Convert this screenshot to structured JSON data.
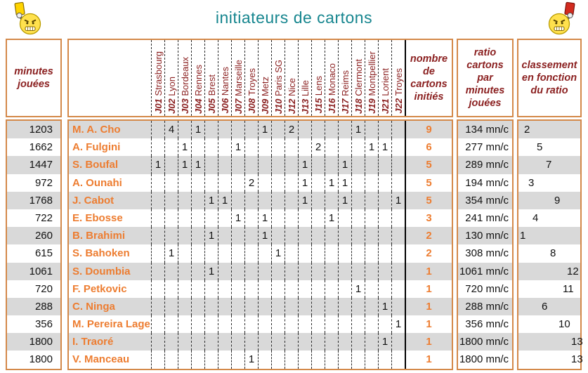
{
  "title": "initiateurs de cartons",
  "icons": {
    "left": "smiley-referee-yellow-card-icon",
    "right": "smiley-referee-red-card-icon"
  },
  "colors": {
    "border_orange": "#d4894a",
    "header_maroon": "#8a1f1f",
    "player_orange": "#ed7d31",
    "title_teal": "#17868f",
    "row_stripe_gray": "#d9d9d9",
    "yellow_card": "#ffd400",
    "red_card": "#d22b1f"
  },
  "headers": {
    "minutes": "minutes jouées",
    "cards_total": "nombre de cartons initiés",
    "ratio": "ratio cartons par minutes jouées",
    "ranking": "classement en fonction du ratio"
  },
  "columns": [
    {
      "id": "J01",
      "team": "Strasbourg"
    },
    {
      "id": "J02",
      "team": "Lyon"
    },
    {
      "id": "J03",
      "team": "Bordeaux"
    },
    {
      "id": "J04",
      "team": "Rennes"
    },
    {
      "id": "J05",
      "team": "Brest"
    },
    {
      "id": "J06",
      "team": "Nantes"
    },
    {
      "id": "J07",
      "team": "Marseille"
    },
    {
      "id": "J08",
      "team": "Troyes"
    },
    {
      "id": "J09",
      "team": "Metz"
    },
    {
      "id": "J10",
      "team": "Paris SG"
    },
    {
      "id": "J12",
      "team": "Nice"
    },
    {
      "id": "J13",
      "team": "Lille"
    },
    {
      "id": "J15",
      "team": "Lens"
    },
    {
      "id": "J16",
      "team": "Monaco"
    },
    {
      "id": "J17",
      "team": "Reims"
    },
    {
      "id": "J18",
      "team": "Clermont"
    },
    {
      "id": "J19",
      "team": "Montpellier"
    },
    {
      "id": "J21",
      "team": "Lorient"
    },
    {
      "id": "J22",
      "team": "Troyes"
    }
  ],
  "rows": [
    {
      "name": "M. A. Cho",
      "minutes": "1203",
      "cards": {
        "J02": "4",
        "J04": "1",
        "J09": "1",
        "J12": "2",
        "J18": "1"
      },
      "total": "9",
      "ratio": "134 mn/c",
      "rank": 2
    },
    {
      "name": "A. Fulgini",
      "minutes": "1662",
      "cards": {
        "J03": "1",
        "J07": "1",
        "J15": "2",
        "J19": "1",
        "J21": "1"
      },
      "total": "6",
      "ratio": "277 mn/c",
      "rank": 5
    },
    {
      "name": "S. Boufal",
      "minutes": "1447",
      "cards": {
        "J01": "1",
        "J03": "1",
        "J04": "1",
        "J13": "1",
        "J17": "1"
      },
      "total": "5",
      "ratio": "289 mn/c",
      "rank": 7
    },
    {
      "name": "A. Ounahi",
      "minutes": "972",
      "cards": {
        "J08": "2",
        "J13": "1",
        "J16": "1",
        "J17": "1"
      },
      "total": "5",
      "ratio": "194 mn/c",
      "rank": 3
    },
    {
      "name": "J. Cabot",
      "minutes": "1768",
      "cards": {
        "J05": "1",
        "J06": "1",
        "J13": "1",
        "J17": "1",
        "J22": "1"
      },
      "total": "5",
      "ratio": "354 mn/c",
      "rank": 9
    },
    {
      "name": "E. Ebosse",
      "minutes": "722",
      "cards": {
        "J07": "1",
        "J09": "1",
        "J16": "1"
      },
      "total": "3",
      "ratio": "241 mn/c",
      "rank": 4
    },
    {
      "name": "B. Brahimi",
      "minutes": "260",
      "cards": {
        "J05": "1",
        "J09": "1"
      },
      "total": "2",
      "ratio": "130 mn/c",
      "rank": 1
    },
    {
      "name": "S. Bahoken",
      "minutes": "615",
      "cards": {
        "J02": "1",
        "J10": "1"
      },
      "total": "2",
      "ratio": "308 mn/c",
      "rank": 8
    },
    {
      "name": "S. Doumbia",
      "minutes": "1061",
      "cards": {
        "J05": "1"
      },
      "total": "1",
      "ratio": "1061 mn/c",
      "rank": 12
    },
    {
      "name": "F. Petkovic",
      "minutes": "720",
      "cards": {
        "J18": "1"
      },
      "total": "1",
      "ratio": "720 mn/c",
      "rank": 11
    },
    {
      "name": "C. Ninga",
      "minutes": "288",
      "cards": {
        "J21": "1"
      },
      "total": "1",
      "ratio": "288 mn/c",
      "rank": 6
    },
    {
      "name": "M. Pereira Lage",
      "minutes": "356",
      "cards": {
        "J22": "1"
      },
      "total": "1",
      "ratio": "356 mn/c",
      "rank": 10
    },
    {
      "name": "I. Traoré",
      "minutes": "1800",
      "cards": {
        "J21": "1"
      },
      "total": "1",
      "ratio": "1800 mn/c",
      "rank": 13
    },
    {
      "name": "V. Manceau",
      "minutes": "1800",
      "cards": {
        "J08": "1"
      },
      "total": "1",
      "ratio": "1800 mn/c",
      "rank": 13
    }
  ]
}
